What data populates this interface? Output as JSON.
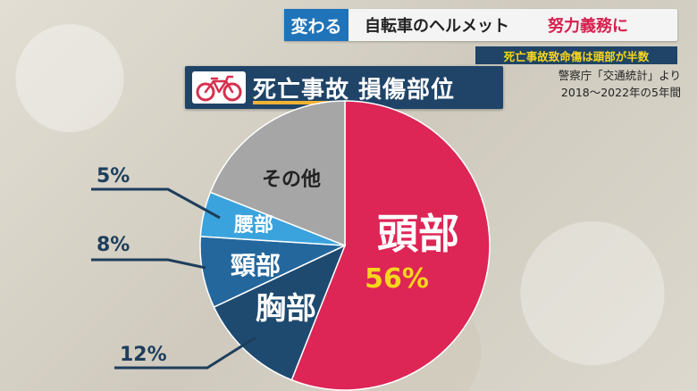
{
  "banner": {
    "tag": "変わる",
    "title": "自転車のヘルメット",
    "accent": "努力義務に"
  },
  "header": {
    "chart_title": "死亡事故 損傷部位",
    "note_highlight": "死亡事故致命傷は頭部が半数",
    "source": "警察庁「交通統計」より",
    "period": "2018～2022年の5年間"
  },
  "icons": {
    "bike": "bicycle-icon"
  },
  "colors": {
    "head": "#dd2556",
    "chest": "#1e4a70",
    "neck": "#24679c",
    "waist": "#3aa3dd",
    "other": "#a6a6a6",
    "head_label": "#f7d71c"
  },
  "chart_data": {
    "type": "pie",
    "title": "死亡事故 損傷部位",
    "slices": [
      {
        "label": "頭部",
        "value": 56,
        "value_label": "56%"
      },
      {
        "label": "胸部",
        "value": 12,
        "value_label": "12%"
      },
      {
        "label": "頸部",
        "value": 8,
        "value_label": "8%"
      },
      {
        "label": "腰部",
        "value": 5,
        "value_label": "5%"
      },
      {
        "label": "その他",
        "value": 19,
        "value_label": ""
      }
    ]
  }
}
